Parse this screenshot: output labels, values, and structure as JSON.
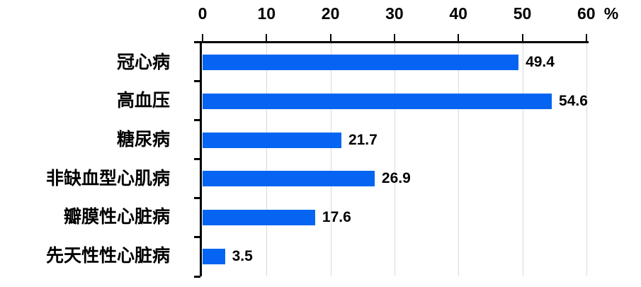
{
  "chart_data": {
    "type": "bar",
    "orientation": "horizontal",
    "title": "",
    "categories": [
      "冠心病",
      "高血压",
      "糖尿病",
      "非缺血型心肌病",
      "瓣膜性心脏病",
      "先天性性心脏病"
    ],
    "values": [
      49.4,
      54.6,
      21.7,
      26.9,
      17.6,
      3.5
    ],
    "data_labels": [
      "49.4",
      "54.6",
      "21.7",
      "26.9",
      "17.6",
      "3.5"
    ],
    "x_axis": {
      "position": "top",
      "tick_labels": [
        "0",
        "10",
        "20",
        "30",
        "40",
        "50",
        "60"
      ],
      "tick_values": [
        0,
        10,
        20,
        30,
        40,
        50,
        60
      ],
      "unit_label": "%",
      "range": [
        0,
        60
      ],
      "gridlines": true
    },
    "legend": null,
    "colors": {
      "bar": "#0565F2",
      "gridline": "#D9D9D9",
      "axis": "#000000",
      "text": "#000000",
      "background": "#FFFFFF"
    }
  }
}
